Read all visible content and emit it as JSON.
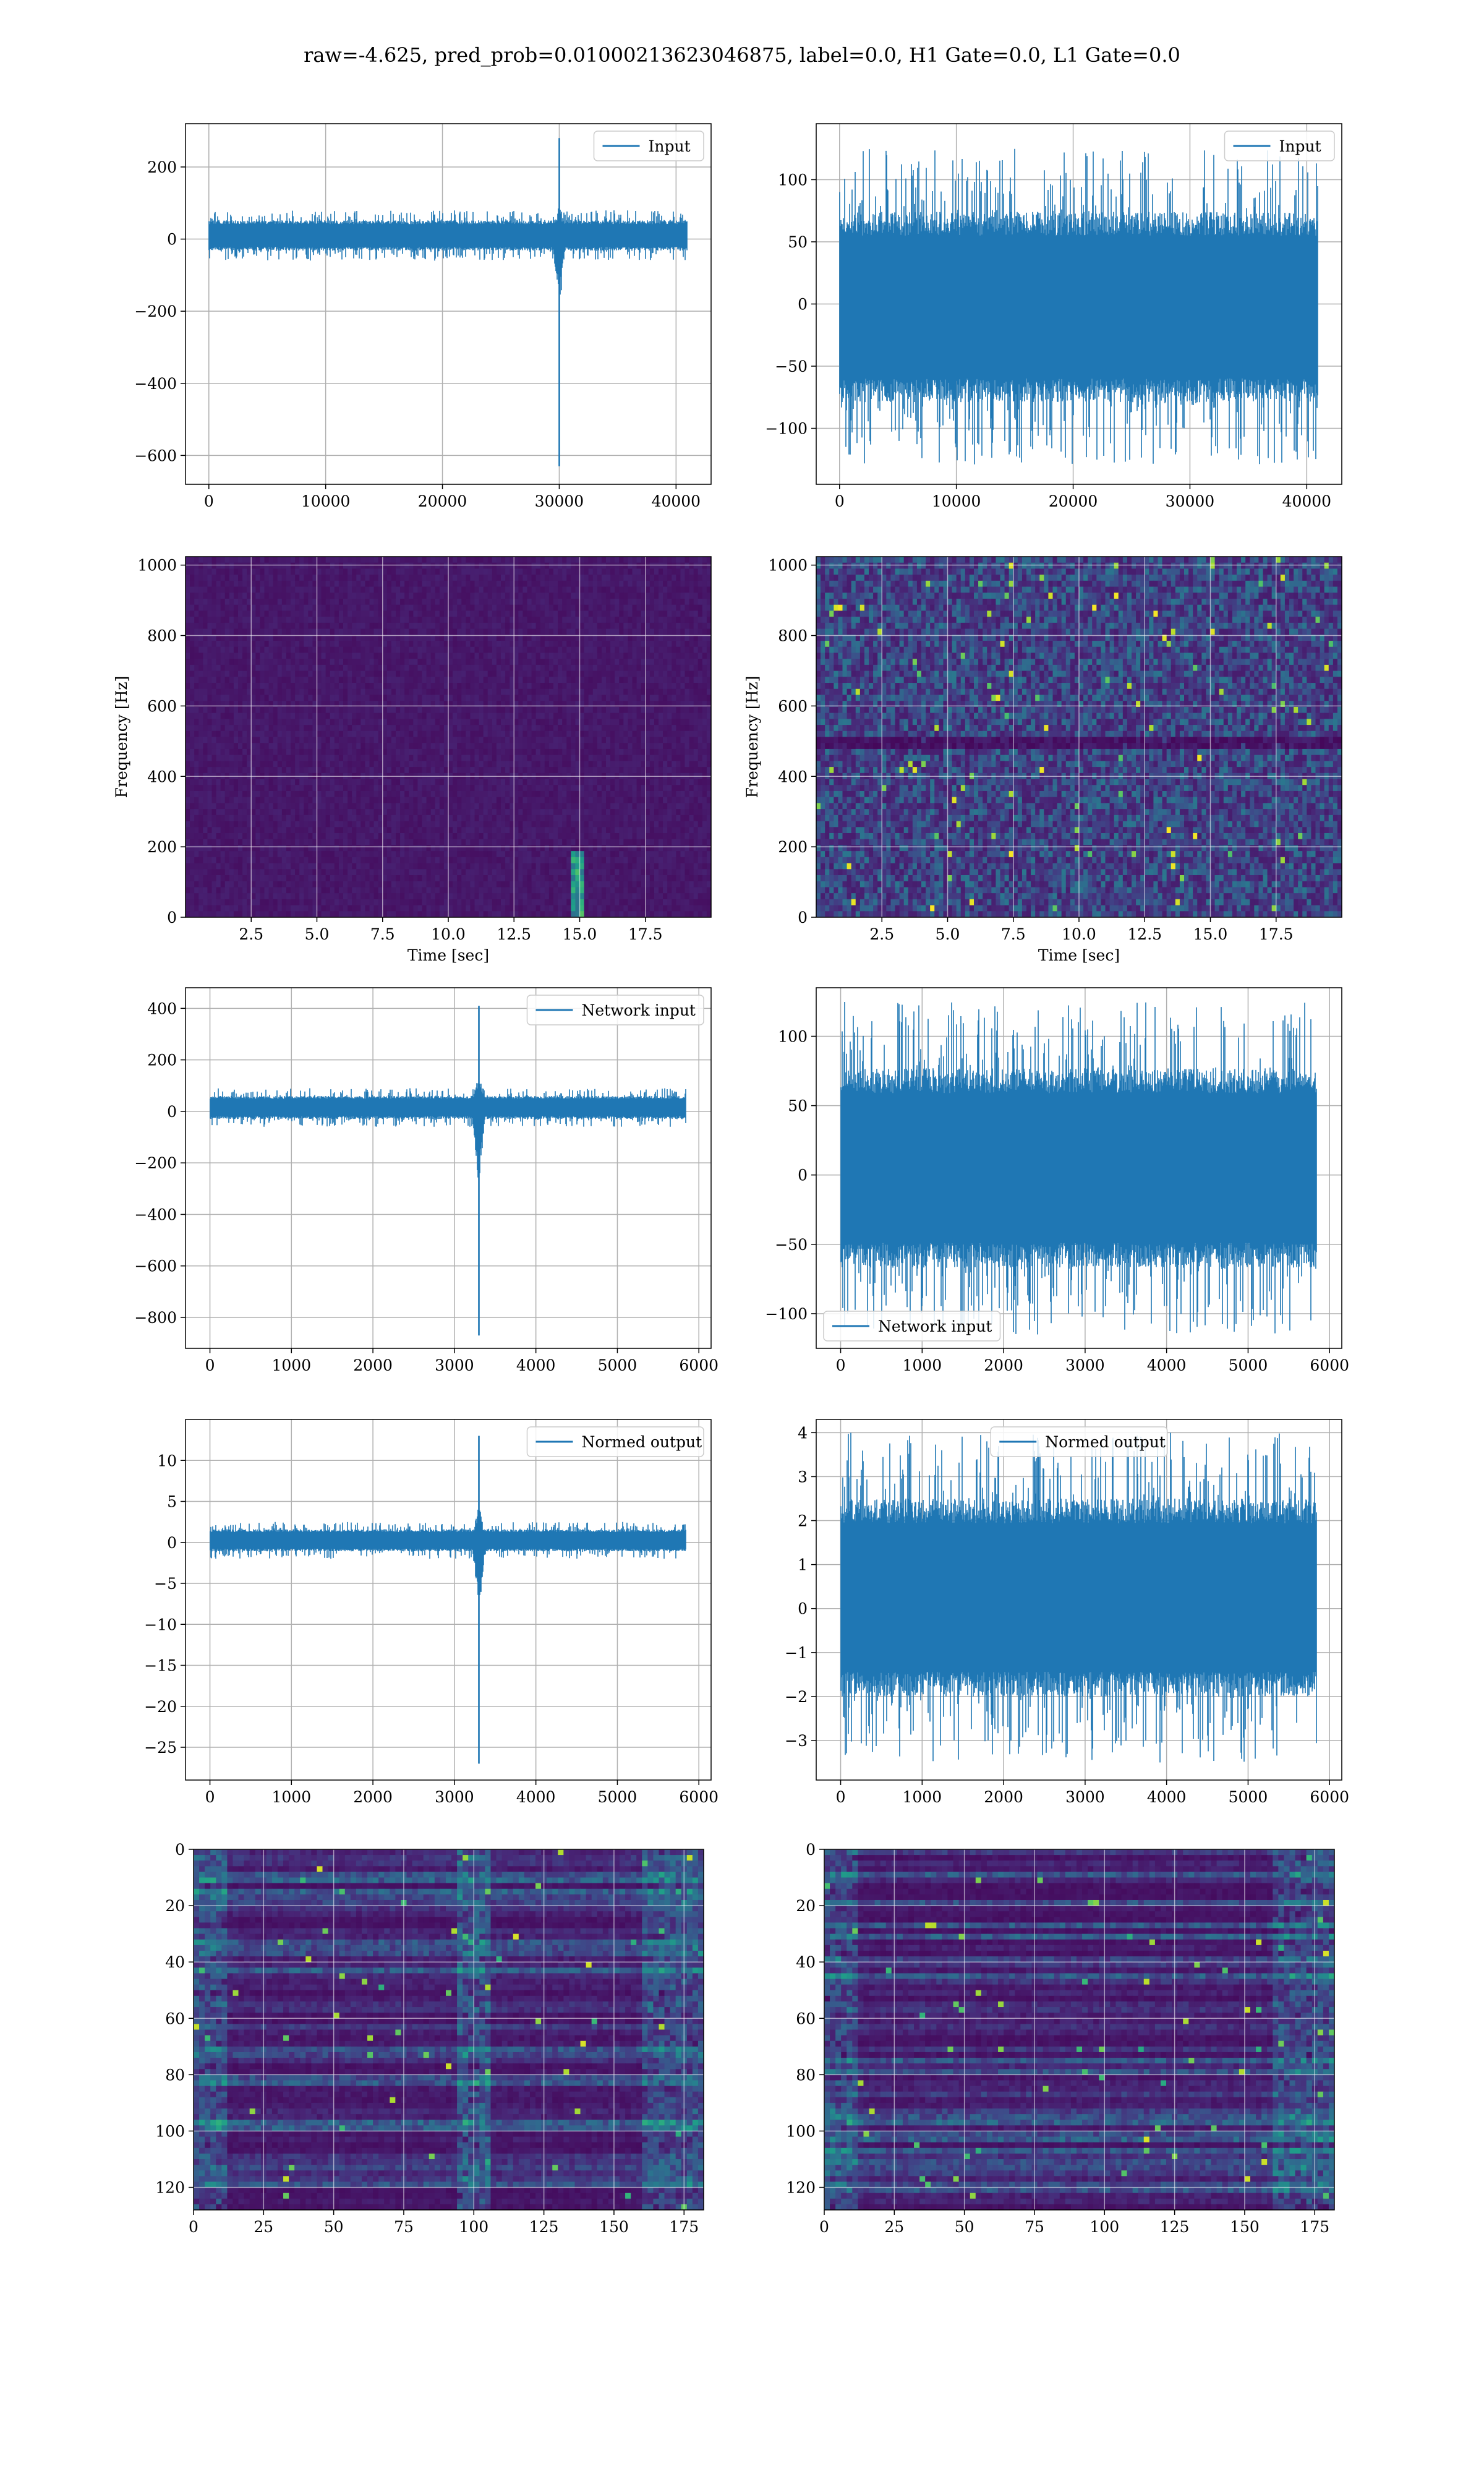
{
  "figure": {
    "suptitle": "raw=-4.625, pred_prob=0.01000213623046875, label=0.0, H1 Gate=0.0, L1 Gate=0.0",
    "series_color": "#1f77b4"
  },
  "chart_data": [
    {
      "id": "h1-input",
      "type": "line",
      "legend": {
        "label": "Input",
        "position": "upper right"
      },
      "xlim": [
        -2000,
        43000
      ],
      "ylim": [
        -680,
        320
      ],
      "xticks": [
        0,
        10000,
        20000,
        30000,
        40000
      ],
      "xtick_labels": [
        "0",
        "10000",
        "20000",
        "30000",
        "40000"
      ],
      "yticks": [
        -600,
        -400,
        -200,
        0,
        200
      ],
      "ytick_labels": [
        "−600",
        "−400",
        "−200",
        "0",
        "200"
      ],
      "grid": true,
      "n_samples": 40960,
      "signal": {
        "noise_band": [
          -60,
          80
        ],
        "glitch_x": 30000,
        "glitch_min": -630,
        "glitch_max": 280
      }
    },
    {
      "id": "l1-input",
      "type": "line",
      "legend": {
        "label": "Input",
        "position": "upper right"
      },
      "xlim": [
        -2000,
        43000
      ],
      "ylim": [
        -145,
        145
      ],
      "xticks": [
        0,
        10000,
        20000,
        30000,
        40000
      ],
      "xtick_labels": [
        "0",
        "10000",
        "20000",
        "30000",
        "40000"
      ],
      "yticks": [
        -100,
        -50,
        0,
        50,
        100
      ],
      "ytick_labels": [
        "−100",
        "−50",
        "0",
        "50",
        "100"
      ],
      "grid": true,
      "n_samples": 40960,
      "signal": {
        "noise_band": [
          -130,
          125
        ]
      }
    },
    {
      "id": "h1-spectrogram",
      "type": "heatmap",
      "xlabel": "Time [sec]",
      "ylabel": "Frequency [Hz]",
      "xlim": [
        0,
        20
      ],
      "ylim": [
        0,
        1024
      ],
      "xticks": [
        2.5,
        5.0,
        7.5,
        10.0,
        12.5,
        15.0,
        17.5
      ],
      "xtick_labels": [
        "2.5",
        "5.0",
        "7.5",
        "10.0",
        "12.5",
        "15.0",
        "17.5"
      ],
      "yticks": [
        0,
        200,
        400,
        600,
        800,
        1000
      ],
      "ytick_labels": [
        "0",
        "200",
        "400",
        "600",
        "800",
        "1000"
      ],
      "grid": true,
      "features": {
        "bright_time": 14.9,
        "bright_freq_max": 180
      }
    },
    {
      "id": "l1-spectrogram",
      "type": "heatmap",
      "xlabel": "Time [sec]",
      "ylabel": "Frequency [Hz]",
      "xlim": [
        0,
        20
      ],
      "ylim": [
        0,
        1024
      ],
      "xticks": [
        2.5,
        5.0,
        7.5,
        10.0,
        12.5,
        15.0,
        17.5
      ],
      "xtick_labels": [
        "2.5",
        "5.0",
        "7.5",
        "10.0",
        "12.5",
        "15.0",
        "17.5"
      ],
      "yticks": [
        0,
        200,
        400,
        600,
        800,
        1000
      ],
      "ytick_labels": [
        "0",
        "200",
        "400",
        "600",
        "800",
        "1000"
      ],
      "grid": true,
      "features": {
        "dark_band_freq": 500
      }
    },
    {
      "id": "h1-network-input",
      "type": "line",
      "legend": {
        "label": "Network input",
        "position": "upper right"
      },
      "xlim": [
        -300,
        6150
      ],
      "ylim": [
        -920,
        480
      ],
      "xticks": [
        0,
        1000,
        2000,
        3000,
        4000,
        5000,
        6000
      ],
      "xtick_labels": [
        "0",
        "1000",
        "2000",
        "3000",
        "4000",
        "5000",
        "6000"
      ],
      "yticks": [
        -800,
        -600,
        -400,
        -200,
        0,
        200,
        400
      ],
      "ytick_labels": [
        "−800",
        "−600",
        "−400",
        "−200",
        "0",
        "200",
        "400"
      ],
      "grid": true,
      "n_samples": 5840,
      "signal": {
        "noise_band": [
          -60,
          90
        ],
        "glitch_x": 3300,
        "glitch_min": -870,
        "glitch_max": 410
      }
    },
    {
      "id": "l1-network-input",
      "type": "line",
      "legend": {
        "label": "Network input",
        "position": "lower left"
      },
      "xlim": [
        -300,
        6150
      ],
      "ylim": [
        -125,
        135
      ],
      "xticks": [
        0,
        1000,
        2000,
        3000,
        4000,
        5000,
        6000
      ],
      "xtick_labels": [
        "0",
        "1000",
        "2000",
        "3000",
        "4000",
        "5000",
        "6000"
      ],
      "yticks": [
        -100,
        -50,
        0,
        50,
        100
      ],
      "ytick_labels": [
        "−100",
        "−50",
        "0",
        "50",
        "100"
      ],
      "grid": true,
      "n_samples": 5840,
      "signal": {
        "noise_band": [
          -115,
          125
        ]
      }
    },
    {
      "id": "h1-normed-output",
      "type": "line",
      "legend": {
        "label": "Normed output",
        "position": "upper right"
      },
      "xlim": [
        -300,
        6150
      ],
      "ylim": [
        -29,
        15
      ],
      "xticks": [
        0,
        1000,
        2000,
        3000,
        4000,
        5000,
        6000
      ],
      "xtick_labels": [
        "0",
        "1000",
        "2000",
        "3000",
        "4000",
        "5000",
        "6000"
      ],
      "yticks": [
        -25,
        -20,
        -15,
        -10,
        -5,
        0,
        5,
        10
      ],
      "ytick_labels": [
        "−25",
        "−20",
        "−15",
        "−10",
        "−5",
        "0",
        "5",
        "10"
      ],
      "grid": true,
      "n_samples": 5840,
      "signal": {
        "noise_band": [
          -2,
          2.5
        ],
        "glitch_x": 3300,
        "glitch_min": -27,
        "glitch_max": 13
      }
    },
    {
      "id": "l1-normed-output",
      "type": "line",
      "legend": {
        "label": "Normed output",
        "position": "upper center"
      },
      "xlim": [
        -300,
        6150
      ],
      "ylim": [
        -3.9,
        4.3
      ],
      "xticks": [
        0,
        1000,
        2000,
        3000,
        4000,
        5000,
        6000
      ],
      "xtick_labels": [
        "0",
        "1000",
        "2000",
        "3000",
        "4000",
        "5000",
        "6000"
      ],
      "yticks": [
        -3,
        -2,
        -1,
        0,
        1,
        2,
        3,
        4
      ],
      "ytick_labels": [
        "−3",
        "−2",
        "−1",
        "0",
        "1",
        "2",
        "3",
        "4"
      ],
      "grid": true,
      "n_samples": 5840,
      "signal": {
        "noise_band": [
          -3.5,
          4
        ]
      }
    },
    {
      "id": "h1-feature-map",
      "type": "heatmap",
      "xlim": [
        0,
        182
      ],
      "ylim": [
        128,
        0
      ],
      "xticks": [
        0,
        25,
        50,
        75,
        100,
        125,
        150,
        175
      ],
      "xtick_labels": [
        "0",
        "25",
        "50",
        "75",
        "100",
        "125",
        "150",
        "175"
      ],
      "yticks": [
        0,
        20,
        40,
        60,
        80,
        100,
        120
      ],
      "ytick_labels": [
        "0",
        "20",
        "40",
        "60",
        "80",
        "100",
        "120"
      ],
      "grid": true
    },
    {
      "id": "l1-feature-map",
      "type": "heatmap",
      "xlim": [
        0,
        182
      ],
      "ylim": [
        128,
        0
      ],
      "xticks": [
        0,
        25,
        50,
        75,
        100,
        125,
        150,
        175
      ],
      "xtick_labels": [
        "0",
        "25",
        "50",
        "75",
        "100",
        "125",
        "150",
        "175"
      ],
      "yticks": [
        0,
        20,
        40,
        60,
        80,
        100,
        120
      ],
      "ytick_labels": [
        "0",
        "20",
        "40",
        "60",
        "80",
        "100",
        "120"
      ],
      "grid": true
    }
  ]
}
